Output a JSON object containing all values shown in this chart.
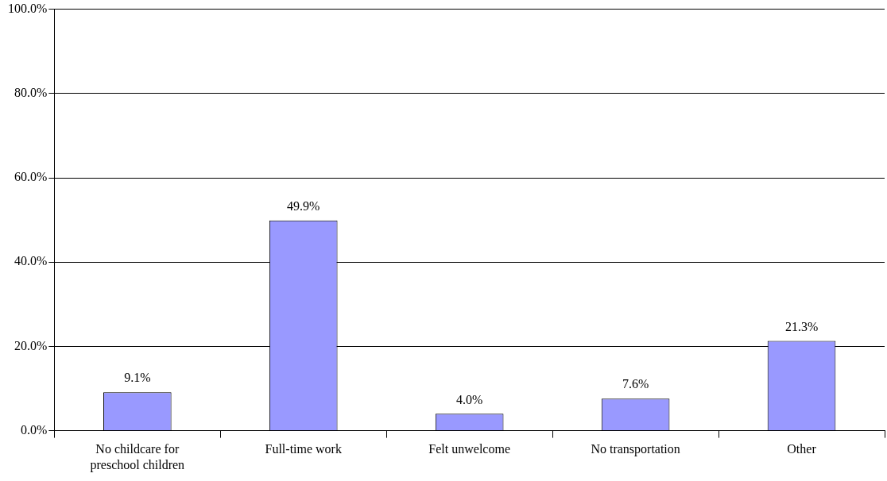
{
  "chart_data": {
    "type": "bar",
    "categories": [
      "No childcare for preschool children",
      "Full-time work",
      "Felt unwelcome",
      "No transportation",
      "Other"
    ],
    "values": [
      9.1,
      49.9,
      4.0,
      7.6,
      21.3
    ],
    "value_labels": [
      "9.1%",
      "49.9%",
      "4.0%",
      "7.6%",
      "21.3%"
    ],
    "color": "#9999ff",
    "ylim": [
      0,
      100
    ],
    "yticks": [
      {
        "value": 0,
        "label": "0.0%"
      },
      {
        "value": 20,
        "label": "20.0%"
      },
      {
        "value": 40,
        "label": "40.0%"
      },
      {
        "value": 60,
        "label": "60.0%"
      },
      {
        "value": 80,
        "label": "80.0%"
      },
      {
        "value": 100,
        "label": "100.0%"
      }
    ],
    "grid": "y",
    "legend": false
  }
}
